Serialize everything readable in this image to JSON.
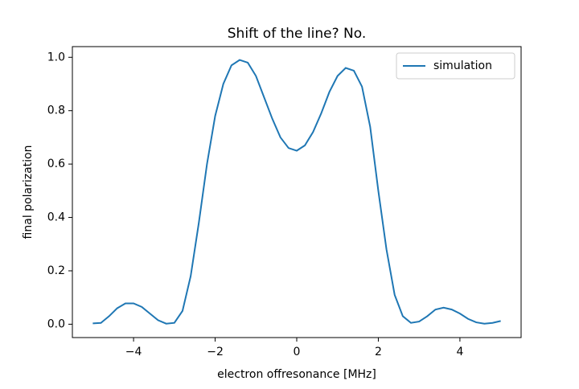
{
  "chart_data": {
    "type": "line",
    "title": "Shift of the line? No.",
    "x_label": "electron offresonance [MHz]",
    "y_label": "final polarization",
    "x": [
      -5.0,
      -4.8,
      -4.6,
      -4.4,
      -4.2,
      -4.0,
      -3.8,
      -3.6,
      -3.4,
      -3.2,
      -3.0,
      -2.8,
      -2.6,
      -2.4,
      -2.2,
      -2.0,
      -1.8,
      -1.6,
      -1.4,
      -1.2,
      -1.0,
      -0.8,
      -0.6,
      -0.4,
      -0.2,
      0.0,
      0.2,
      0.4,
      0.6,
      0.8,
      1.0,
      1.2,
      1.4,
      1.6,
      1.8,
      2.0,
      2.2,
      2.4,
      2.6,
      2.8,
      3.0,
      3.2,
      3.4,
      3.6,
      3.8,
      4.0,
      4.2,
      4.4,
      4.6,
      4.8,
      5.0
    ],
    "series": [
      {
        "name": "simulation",
        "color": "#1f77b4",
        "values": [
          0.003,
          0.005,
          0.03,
          0.06,
          0.078,
          0.078,
          0.065,
          0.04,
          0.015,
          0.002,
          0.005,
          0.05,
          0.18,
          0.38,
          0.6,
          0.78,
          0.9,
          0.97,
          0.99,
          0.98,
          0.93,
          0.85,
          0.77,
          0.7,
          0.66,
          0.65,
          0.67,
          0.72,
          0.79,
          0.87,
          0.93,
          0.96,
          0.95,
          0.89,
          0.74,
          0.5,
          0.28,
          0.11,
          0.03,
          0.005,
          0.01,
          0.03,
          0.055,
          0.062,
          0.055,
          0.04,
          0.02,
          0.007,
          0.002,
          0.005,
          0.012
        ]
      }
    ],
    "xlim": [
      -5.5,
      5.5
    ],
    "ylim": [
      -0.05,
      1.04
    ],
    "xticks": [
      {
        "value": -4,
        "label": "−4"
      },
      {
        "value": -2,
        "label": "−2"
      },
      0,
      2,
      4
    ],
    "yticks": [
      {
        "value": 0,
        "label": "0.0"
      },
      {
        "value": 0.2,
        "label": "0.2"
      },
      {
        "value": 0.4,
        "label": "0.4"
      },
      {
        "value": 0.6,
        "label": "0.6"
      },
      {
        "value": 0.8,
        "label": "0.8"
      },
      {
        "value": 1,
        "label": "1.0"
      }
    ],
    "grid": false,
    "legend_position": "upper-right"
  }
}
